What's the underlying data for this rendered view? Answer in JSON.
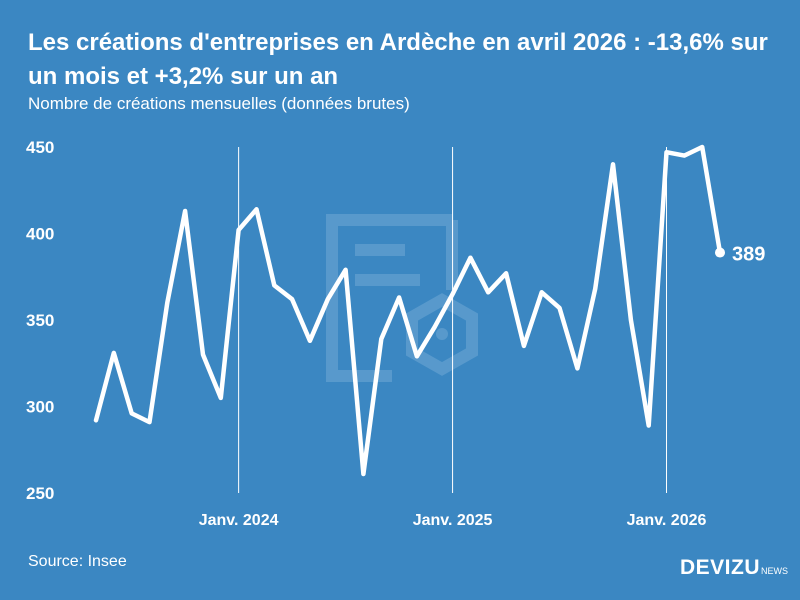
{
  "title": "Les créations d'entreprises en Ardèche en avril 2026 : -13,6% sur un mois et +3,2% sur un an",
  "subtitle": "Nombre de créations mensuelles (données brutes)",
  "source": "Source: Insee",
  "brand": {
    "name": "DEVIZU",
    "suffix": "NEWS"
  },
  "colors": {
    "background": "#3b87c2",
    "line": "#ffffff",
    "watermark": "#5b9bcd"
  },
  "chart_data": {
    "type": "line",
    "title": "Les créations d'entreprises en Ardèche en avril 2026 : -13,6% sur un mois et +3,2% sur un an",
    "ylabel": "",
    "xlabel": "",
    "ylim": [
      250,
      450
    ],
    "yticks": [
      "450",
      "400",
      "350",
      "300",
      "250"
    ],
    "xtick_labels": [
      {
        "index": 8,
        "label": "Janv. 2024"
      },
      {
        "index": 20,
        "label": "Janv. 2025"
      },
      {
        "index": 32,
        "label": "Janv. 2026"
      }
    ],
    "x": [
      "2023-05",
      "2023-06",
      "2023-07",
      "2023-08",
      "2023-09",
      "2023-10",
      "2023-11",
      "2023-12",
      "2024-01",
      "2024-02",
      "2024-03",
      "2024-04",
      "2024-05",
      "2024-06",
      "2024-07",
      "2024-08",
      "2024-09",
      "2024-10",
      "2024-11",
      "2024-12",
      "2025-01",
      "2025-02",
      "2025-03",
      "2025-04",
      "2025-05",
      "2025-06",
      "2025-07",
      "2025-08",
      "2025-09",
      "2025-10",
      "2025-11",
      "2025-12",
      "2026-01",
      "2026-02",
      "2026-03",
      "2026-04"
    ],
    "values": [
      292,
      331,
      296,
      291,
      360,
      413,
      330,
      305,
      402,
      414,
      370,
      362,
      338,
      362,
      379,
      261,
      339,
      363,
      329,
      346,
      365,
      386,
      366,
      377,
      335,
      366,
      357,
      322,
      368,
      440,
      350,
      289,
      447,
      445,
      450,
      389
    ],
    "last_label": "389",
    "grid": false
  }
}
